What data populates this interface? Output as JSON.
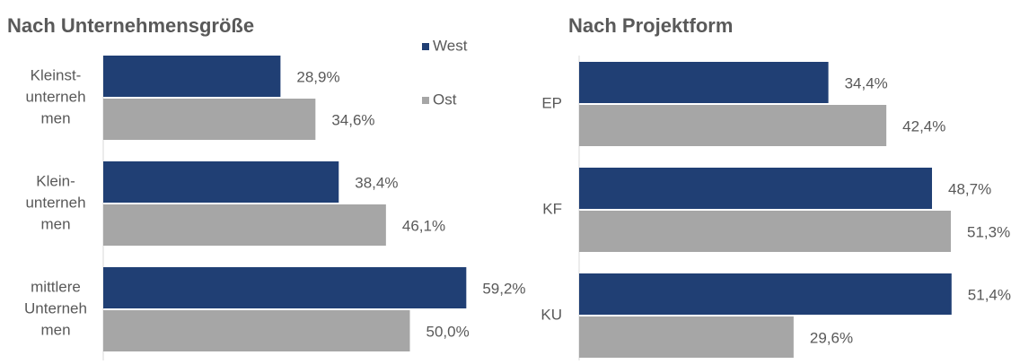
{
  "chart_data": [
    {
      "type": "bar",
      "orientation": "horizontal",
      "title": "Nach Unternehmensgröße",
      "categories": [
        [
          "Kleinst-",
          "unterneh",
          "men"
        ],
        [
          "Klein-",
          "unterneh",
          "men"
        ],
        [
          "mittlere",
          "Unterneh",
          "men"
        ]
      ],
      "series": [
        {
          "name": "West",
          "color": "#203f74",
          "values": [
            28.9,
            38.4,
            59.2
          ],
          "value_labels": [
            "28,9%",
            "38,4%",
            "59,2%"
          ]
        },
        {
          "name": "Ost",
          "color": "#a6a6a6",
          "values": [
            34.6,
            46.1,
            50.0
          ],
          "value_labels": [
            "34,6%",
            "46,1%",
            "50,0%"
          ]
        }
      ],
      "legend": "top-right"
    },
    {
      "type": "bar",
      "orientation": "horizontal",
      "title": "Nach Projektform",
      "categories": [
        [
          "EP"
        ],
        [
          "KF"
        ],
        [
          "KU"
        ]
      ],
      "series": [
        {
          "name": "West",
          "color": "#203f74",
          "values": [
            34.4,
            48.7,
            51.4
          ],
          "value_labels": [
            "34,4%",
            "48,7%",
            "51,4%"
          ]
        },
        {
          "name": "Ost",
          "color": "#a6a6a6",
          "values": [
            42.4,
            51.3,
            29.6
          ],
          "value_labels": [
            "42,4%",
            "51,3%",
            "29,6%"
          ]
        }
      ],
      "legend": false
    }
  ]
}
